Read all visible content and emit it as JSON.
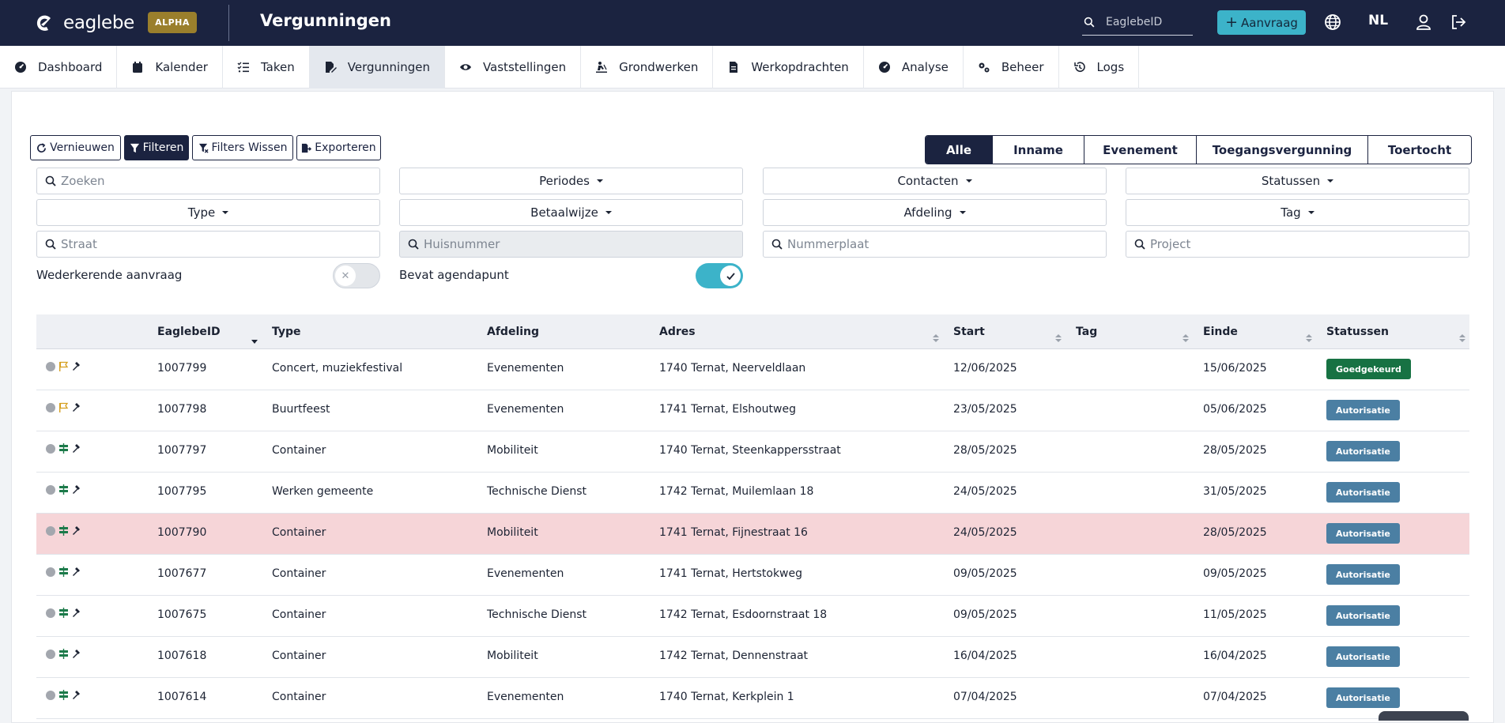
{
  "header": {
    "brand": "eaglebe",
    "badge": "ALPHA",
    "title": "Vergunningen",
    "search_placeholder": "EaglebeID",
    "new_request_label": "Aanvraag",
    "language": "NL"
  },
  "nav": [
    {
      "label": "Dashboard",
      "icon": "gauge-icon",
      "active": false
    },
    {
      "label": "Kalender",
      "icon": "calendar-icon",
      "active": false
    },
    {
      "label": "Taken",
      "icon": "checklist-icon",
      "active": false
    },
    {
      "label": "Vergunningen",
      "icon": "file-signature-icon",
      "active": true
    },
    {
      "label": "Vaststellingen",
      "icon": "eye-icon",
      "active": false
    },
    {
      "label": "Grondwerken",
      "icon": "digging-icon",
      "active": false
    },
    {
      "label": "Werkopdrachten",
      "icon": "document-icon",
      "active": false
    },
    {
      "label": "Analyse",
      "icon": "gauge-icon",
      "active": false
    },
    {
      "label": "Beheer",
      "icon": "gears-icon",
      "active": false
    },
    {
      "label": "Logs",
      "icon": "history-icon",
      "active": false
    }
  ],
  "toolbar": {
    "refresh": "Vernieuwen",
    "filter": "Filteren",
    "clear_filters": "Filters Wissen",
    "export": "Exporteren"
  },
  "categories": [
    "Alle",
    "Inname",
    "Evenement",
    "Toegangsvergunning",
    "Toertocht"
  ],
  "filters": {
    "search_placeholder": "Zoeken",
    "periods": "Periodes",
    "contacts": "Contacten",
    "statuses": "Statussen",
    "type": "Type",
    "payment": "Betaalwijze",
    "department": "Afdeling",
    "tag": "Tag",
    "street_placeholder": "Straat",
    "house_number_placeholder": "Huisnummer",
    "plate_placeholder": "Nummerplaat",
    "project_placeholder": "Project",
    "recurring_label": "Wederkerende aanvraag",
    "recurring_on": false,
    "agenda_label": "Bevat agendapunt",
    "agenda_on": true
  },
  "table": {
    "columns": [
      "EaglebeID",
      "Type",
      "Afdeling",
      "Adres",
      "Start",
      "Tag",
      "Einde",
      "Statussen"
    ],
    "rows": [
      {
        "id": "1007799",
        "type": "Concert, muziekfestival",
        "dept": "Evenementen",
        "address": "1740 Ternat, Neerveldlaan",
        "start": "12/06/2025",
        "tag": "",
        "end": "15/06/2025",
        "status": "Goedgekeurd",
        "kind": "flag-icon",
        "highlight": false
      },
      {
        "id": "1007798",
        "type": "Buurtfeest",
        "dept": "Evenementen",
        "address": "1741 Ternat, Elshoutweg",
        "start": "23/05/2025",
        "tag": "",
        "end": "05/06/2025",
        "status": "Autorisatie",
        "kind": "flag-icon",
        "highlight": false
      },
      {
        "id": "1007797",
        "type": "Container",
        "dept": "Mobiliteit",
        "address": "1740 Ternat, Steenkappersstraat",
        "start": "28/05/2025",
        "tag": "",
        "end": "28/05/2025",
        "status": "Autorisatie",
        "kind": "signpost-icon",
        "highlight": false
      },
      {
        "id": "1007795",
        "type": "Werken gemeente",
        "dept": "Technische Dienst",
        "address": "1742 Ternat, Muilemlaan 18",
        "start": "24/05/2025",
        "tag": "",
        "end": "31/05/2025",
        "status": "Autorisatie",
        "kind": "signpost-icon",
        "highlight": false
      },
      {
        "id": "1007790",
        "type": "Container",
        "dept": "Mobiliteit",
        "address": "1741 Ternat, Fijnestraat 16",
        "start": "24/05/2025",
        "tag": "",
        "end": "28/05/2025",
        "status": "Autorisatie",
        "kind": "signpost-icon",
        "highlight": true
      },
      {
        "id": "1007677",
        "type": "Container",
        "dept": "Evenementen",
        "address": "1741 Ternat, Hertstokweg",
        "start": "09/05/2025",
        "tag": "",
        "end": "09/05/2025",
        "status": "Autorisatie",
        "kind": "signpost-icon",
        "highlight": false
      },
      {
        "id": "1007675",
        "type": "Container",
        "dept": "Technische Dienst",
        "address": "1742 Ternat, Esdoornstraat 18",
        "start": "09/05/2025",
        "tag": "",
        "end": "11/05/2025",
        "status": "Autorisatie",
        "kind": "signpost-icon",
        "highlight": false
      },
      {
        "id": "1007618",
        "type": "Container",
        "dept": "Mobiliteit",
        "address": "1742 Ternat, Dennenstraat",
        "start": "16/04/2025",
        "tag": "",
        "end": "16/04/2025",
        "status": "Autorisatie",
        "kind": "signpost-icon",
        "highlight": false
      },
      {
        "id": "1007614",
        "type": "Container",
        "dept": "Evenementen",
        "address": "1740 Ternat, Kerkplein 1",
        "start": "07/04/2025",
        "tag": "",
        "end": "07/04/2025",
        "status": "Autorisatie",
        "kind": "signpost-icon",
        "highlight": false
      }
    ]
  },
  "colors": {
    "header_bg": "#1b2340",
    "accent": "#3cb3c9",
    "approved": "#177243",
    "authorisation": "#4b7fa3",
    "highlight_row": "#f6d5d8"
  }
}
